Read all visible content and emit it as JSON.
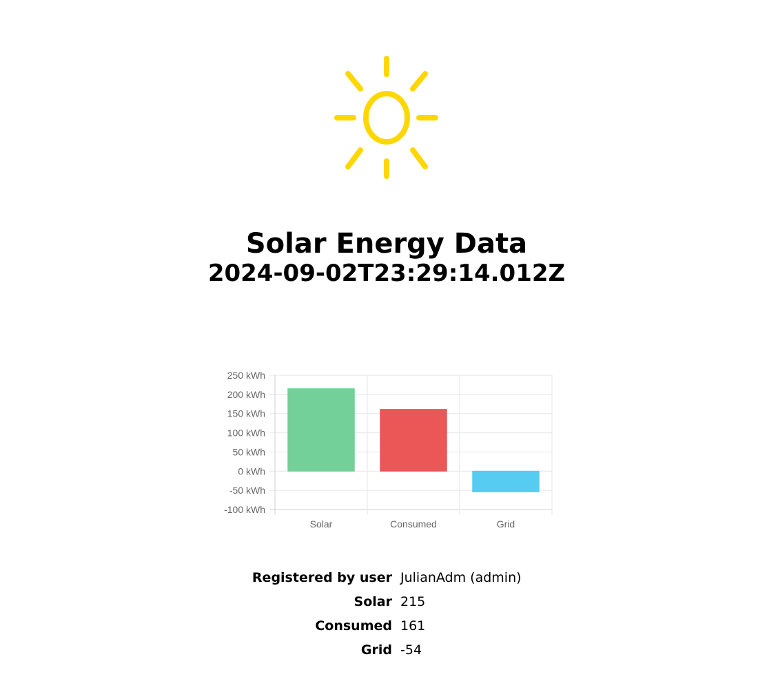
{
  "header": {
    "icon": "sun-icon",
    "icon_color": "#FFD700",
    "title": "Solar Energy Data",
    "timestamp": "2024-09-02T23:29:14.012Z"
  },
  "chart_data": {
    "type": "bar",
    "categories": [
      "Solar",
      "Consumed",
      "Grid"
    ],
    "values": [
      215,
      161,
      -54
    ],
    "colors": [
      "#72D098",
      "#EB5757",
      "#56CCF2"
    ],
    "y_ticks": [
      "250 kWh",
      "200 kWh",
      "150 kWh",
      "100 kWh",
      "50 kWh",
      "0 kWh",
      "-50 kWh",
      "-100 kWh"
    ],
    "ylim": [
      -100,
      250
    ],
    "y_unit": "kWh",
    "grid": true,
    "legend": "none"
  },
  "details": [
    {
      "label": "Registered by user",
      "value": "JulianAdm (admin)"
    },
    {
      "label": "Solar",
      "value": "215"
    },
    {
      "label": "Consumed",
      "value": "161"
    },
    {
      "label": "Grid",
      "value": "-54"
    }
  ]
}
